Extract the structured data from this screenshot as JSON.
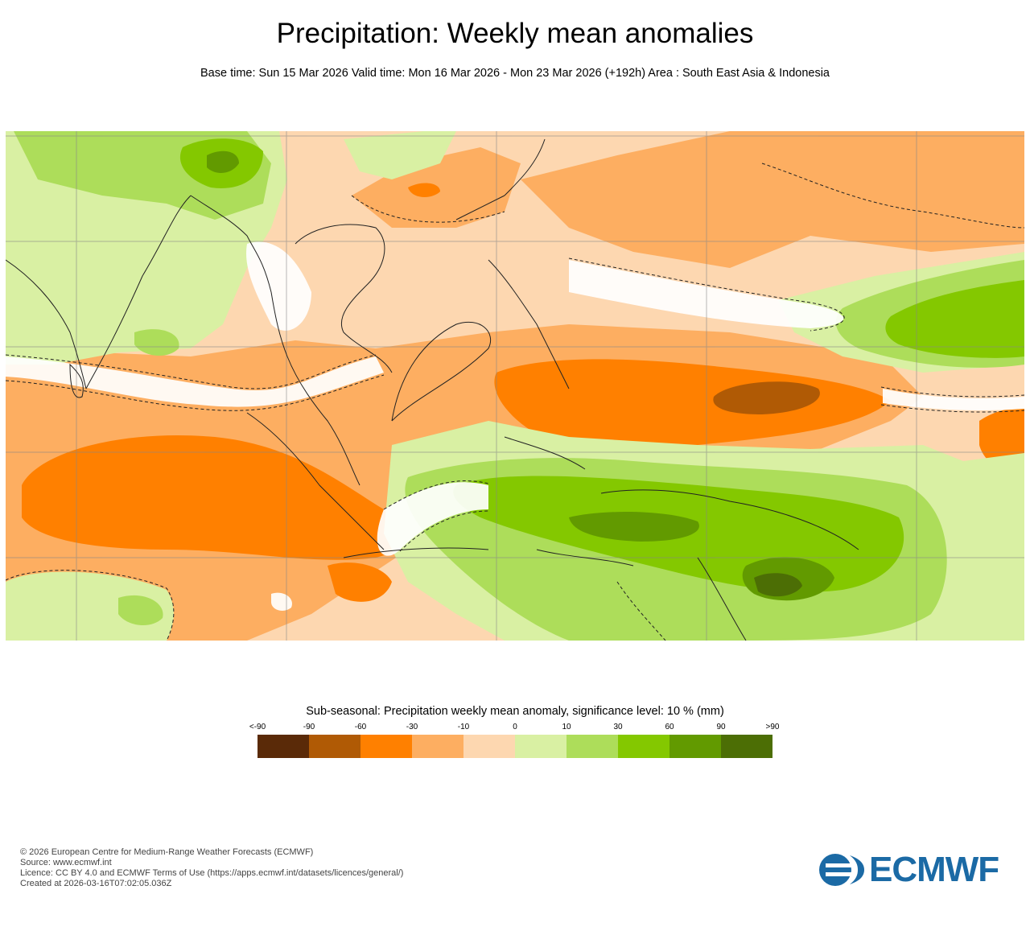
{
  "header": {
    "title": "Precipitation: Weekly mean anomalies",
    "subtitle": "Base time: Sun 15 Mar 2026 Valid time: Mon 16 Mar 2026 - Mon 23 Mar 2026 (+192h) Area : South East Asia & Indonesia"
  },
  "map": {
    "region": "South East Asia & Indonesia",
    "variable": "precipitation weekly mean anomaly",
    "units": "mm",
    "significance_level_percent": 10
  },
  "legend": {
    "title": "Sub-seasonal: Precipitation weekly mean anomaly, significance level: 10 % (mm)",
    "ticks": [
      "<-90",
      "-90",
      "-60",
      "-30",
      "-10",
      "0",
      "10",
      "30",
      "60",
      "90",
      ">90"
    ],
    "colors": [
      "#5a2a08",
      "#b05a05",
      "#ff8000",
      "#fdae61",
      "#fdd7b0",
      "#d9f0a3",
      "#addd5a",
      "#84c800",
      "#629a00",
      "#4c6e05"
    ]
  },
  "footer": {
    "lines": [
      "© 2026 European Centre for Medium-Range Weather Forecasts (ECMWF)",
      "Source: www.ecmwf.int",
      "Licence: CC BY 4.0 and ECMWF Terms of Use (https://apps.ecmwf.int/datasets/licences/general/)",
      "Created at 2026-03-16T07:02:05.036Z"
    ]
  },
  "logo": {
    "text": "ECMWF",
    "color": "#1b6aa5"
  }
}
